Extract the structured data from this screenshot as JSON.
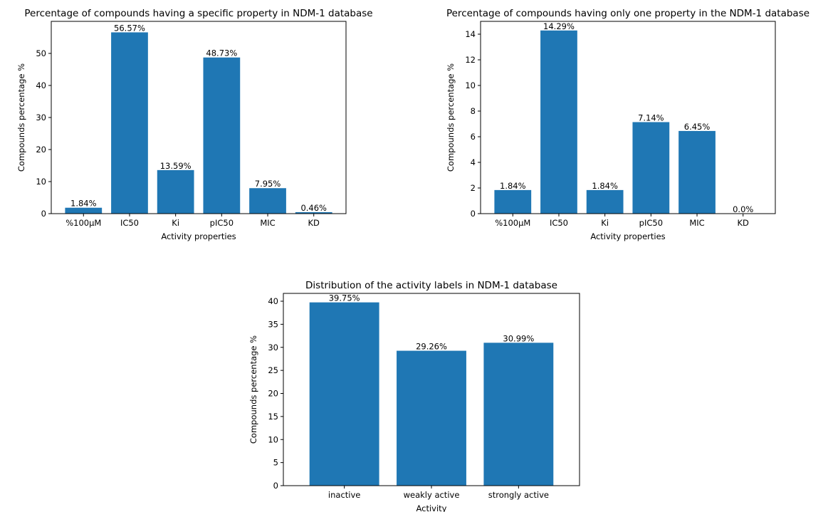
{
  "chart_data": [
    {
      "type": "bar",
      "title": "Percentage of compounds having a specific property in NDM-1 database",
      "xlabel": "Activity properties",
      "ylabel": "Compounds percentage %",
      "categories": [
        "%100µM",
        "IC50",
        "Ki",
        "pIC50",
        "MIC",
        "KD"
      ],
      "values": [
        1.84,
        56.57,
        13.59,
        48.73,
        7.95,
        0.46
      ],
      "value_labels": [
        "1.84%",
        "56.57%",
        "13.59%",
        "48.73%",
        "7.95%",
        "0.46%"
      ],
      "ylim": [
        0,
        60
      ],
      "yticks": [
        0,
        10,
        20,
        30,
        40,
        50
      ],
      "bar_color": "#1f77b4",
      "grid": false
    },
    {
      "type": "bar",
      "title": "Percentage of compounds having only one property in the NDM-1 database",
      "xlabel": "Activity properties",
      "ylabel": "Compounds percentage %",
      "categories": [
        "%100µM",
        "IC50",
        "Ki",
        "pIC50",
        "MIC",
        "KD"
      ],
      "values": [
        1.84,
        14.29,
        1.84,
        7.14,
        6.45,
        0.0
      ],
      "value_labels": [
        "1.84%",
        "14.29%",
        "1.84%",
        "7.14%",
        "6.45%",
        "0.0%"
      ],
      "ylim": [
        0,
        15
      ],
      "yticks": [
        0,
        2,
        4,
        6,
        8,
        10,
        12,
        14
      ],
      "bar_color": "#1f77b4",
      "grid": false
    },
    {
      "type": "bar",
      "title": "Distribution of the activity labels in NDM-1 database",
      "xlabel": "Activity",
      "ylabel": "Compounds percentage %",
      "categories": [
        "inactive",
        "weakly active",
        "strongly active"
      ],
      "values": [
        39.75,
        29.26,
        30.99
      ],
      "value_labels": [
        "39.75%",
        "29.26%",
        "30.99%"
      ],
      "ylim": [
        0,
        41.7
      ],
      "yticks": [
        0,
        5,
        10,
        15,
        20,
        25,
        30,
        35,
        40
      ],
      "bar_color": "#1f77b4",
      "grid": false
    }
  ]
}
